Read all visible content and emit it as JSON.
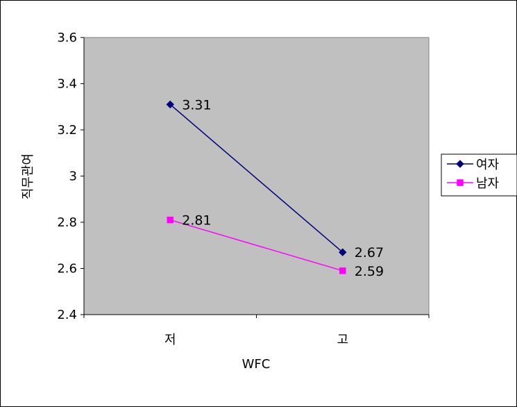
{
  "chart_data": {
    "type": "line",
    "categories": [
      "저",
      "고"
    ],
    "series": [
      {
        "name": "여자",
        "values": [
          3.31,
          2.67
        ],
        "color": "#000080",
        "marker": "diamond"
      },
      {
        "name": "남자",
        "values": [
          2.81,
          2.59
        ],
        "color": "#FF00FF",
        "marker": "square"
      }
    ],
    "data_labels": [
      [
        "3.31",
        "2.67"
      ],
      [
        "2.81",
        "2.59"
      ]
    ],
    "xlabel": "WFC",
    "ylabel": "직무관여",
    "ylim": [
      2.4,
      3.6
    ],
    "yticks": [
      "2.4",
      "2.6",
      "2.8",
      "3",
      "3.2",
      "3.4",
      "3.6"
    ],
    "grid": false,
    "legend_position": "right",
    "plot_background": "#C0C0C0"
  }
}
